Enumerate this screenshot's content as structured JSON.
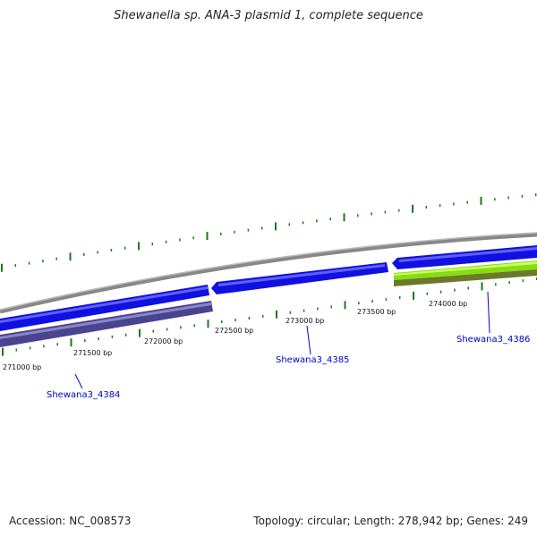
{
  "title": "Shewanella sp. ANA-3 plasmid 1, complete sequence",
  "footer": {
    "accession": "Accession: NC_008573",
    "stats": "Topology: circular; Length: 278,942 bp; Genes: 249"
  },
  "ticks": [
    {
      "label": "271000 bp"
    },
    {
      "label": "271500 bp"
    },
    {
      "label": "272000 bp"
    },
    {
      "label": "272500 bp"
    },
    {
      "label": "273000 bp"
    },
    {
      "label": "273500 bp"
    },
    {
      "label": "274000 bp"
    }
  ],
  "genes": [
    {
      "label": "Shewana3_4384"
    },
    {
      "label": "Shewana3_4385"
    },
    {
      "label": "Shewana3_4386"
    }
  ],
  "colors": {
    "backbone": "#888888",
    "cds_forward": "#1010e0",
    "cds_reverse": "#1010e0",
    "gene_dark": "#4a4490",
    "gene_green": "#88dd11",
    "gene_olive": "#6b7a2a",
    "tick": "#1a7a1a",
    "label_blue": "#0000cc"
  }
}
